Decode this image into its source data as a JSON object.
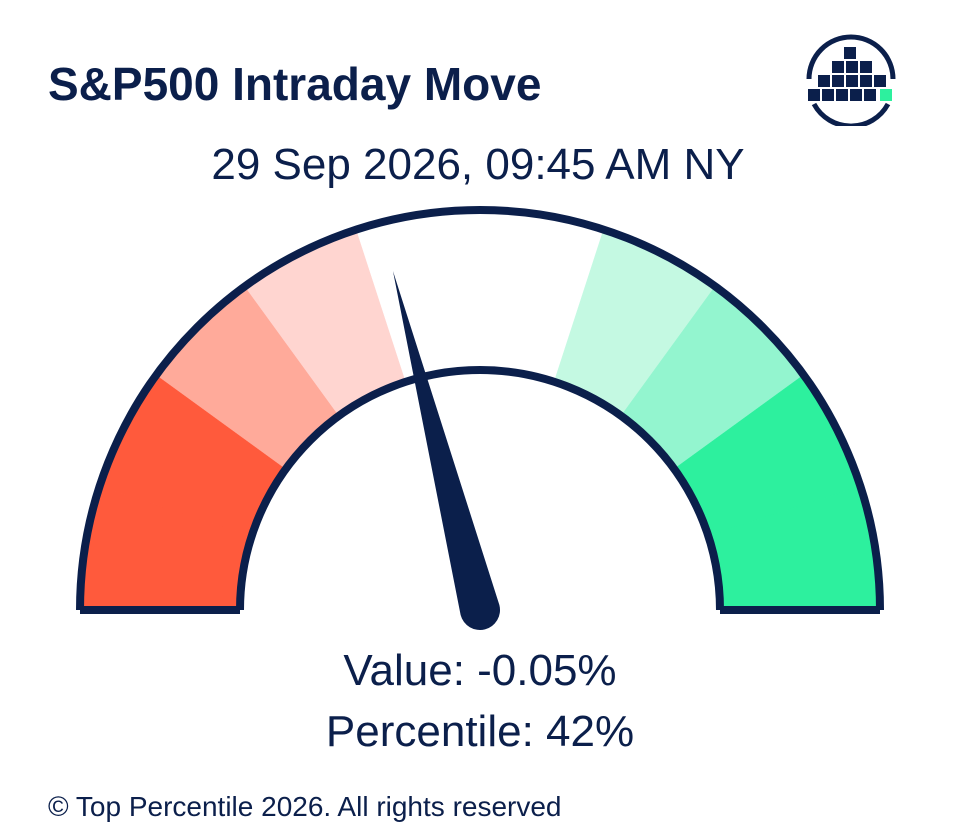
{
  "title": "S&P500 Intraday Move",
  "subtitle": "29 Sep 2026, 09:45 AM NY",
  "value_text": "Value: -0.05%",
  "percentile_text": "Percentile: 42%",
  "footer": "© Top Percentile 2026. All rights reserved",
  "logo": {
    "icon": "top-percentile-logo-icon"
  },
  "chart_data": {
    "type": "gauge",
    "min": 0,
    "max": 100,
    "value": 42,
    "bands": [
      {
        "from": 0,
        "to": 10,
        "color": "#ff5a3c"
      },
      {
        "from": 10,
        "to": 20,
        "color": "#ff5a3c"
      },
      {
        "from": 20,
        "to": 30,
        "color": "#ffaa9a"
      },
      {
        "from": 30,
        "to": 40,
        "color": "#ffd5d0"
      },
      {
        "from": 40,
        "to": 60,
        "color": "#ffffff"
      },
      {
        "from": 60,
        "to": 70,
        "color": "#c4f9e2"
      },
      {
        "from": 70,
        "to": 80,
        "color": "#93f5cf"
      },
      {
        "from": 80,
        "to": 90,
        "color": "#2df09e"
      },
      {
        "from": 90,
        "to": 100,
        "color": "#2df09e"
      }
    ],
    "outline_color": "#0b1f4b",
    "needle_color": "#0b1f4b"
  }
}
